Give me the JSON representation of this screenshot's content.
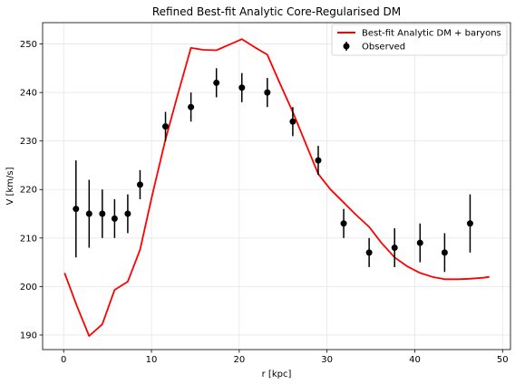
{
  "chart_data": {
    "type": "line",
    "title": "Refined Best-fit Analytic Core-Regularised DM",
    "xlabel": "r [kpc]",
    "ylabel": "V [km/s]",
    "xlim": [
      -2.4,
      50.9
    ],
    "ylim": [
      187,
      254.4
    ],
    "xticks": [
      0,
      10,
      20,
      30,
      40,
      50
    ],
    "yticks": [
      190,
      200,
      210,
      220,
      230,
      240,
      250
    ],
    "grid": true,
    "legend": {
      "placement": "top-right",
      "entries": [
        "Best-fit Analytic DM + baryons",
        "Observed"
      ]
    },
    "colors": {
      "model": "#ff0000",
      "observed": "#000000"
    },
    "series": [
      {
        "name": "Best-fit Analytic DM + baryons",
        "kind": "line",
        "x": [
          0.1,
          1.5,
          2.9,
          4.4,
          5.8,
          7.3,
          8.7,
          10.1,
          11.6,
          13.0,
          14.5,
          15.9,
          17.4,
          18.8,
          20.3,
          21.7,
          23.2,
          24.6,
          26.1,
          27.5,
          29.0,
          30.4,
          31.9,
          33.3,
          34.8,
          36.2,
          37.7,
          39.1,
          40.6,
          42.0,
          43.4,
          44.9,
          46.3,
          47.8,
          48.5
        ],
        "y": [
          202.8,
          196.0,
          189.8,
          192.2,
          199.3,
          201.0,
          207.6,
          218.9,
          230.3,
          239.6,
          249.2,
          248.8,
          248.7,
          249.8,
          251.0,
          249.4,
          247.8,
          242.0,
          236.0,
          229.8,
          223.2,
          220.0,
          217.3,
          214.8,
          212.3,
          209.0,
          206.0,
          204.2,
          202.8,
          202.0,
          201.5,
          201.5,
          201.6,
          201.8,
          202.0
        ]
      },
      {
        "name": "Observed",
        "kind": "errorbar",
        "x": [
          1.4,
          2.9,
          4.4,
          5.8,
          7.3,
          8.7,
          11.6,
          14.5,
          17.4,
          20.3,
          23.2,
          26.1,
          29.0,
          31.9,
          34.8,
          37.7,
          40.6,
          43.4,
          46.3
        ],
        "y": [
          216,
          215,
          215,
          214,
          215,
          221,
          233,
          237,
          242,
          241,
          240,
          234,
          226,
          213,
          207,
          208,
          209,
          207,
          213
        ],
        "yerr": [
          10,
          7,
          5,
          4,
          4,
          3,
          3,
          3,
          3,
          3,
          3,
          3,
          3,
          3,
          3,
          4,
          4,
          4,
          6
        ]
      }
    ]
  }
}
